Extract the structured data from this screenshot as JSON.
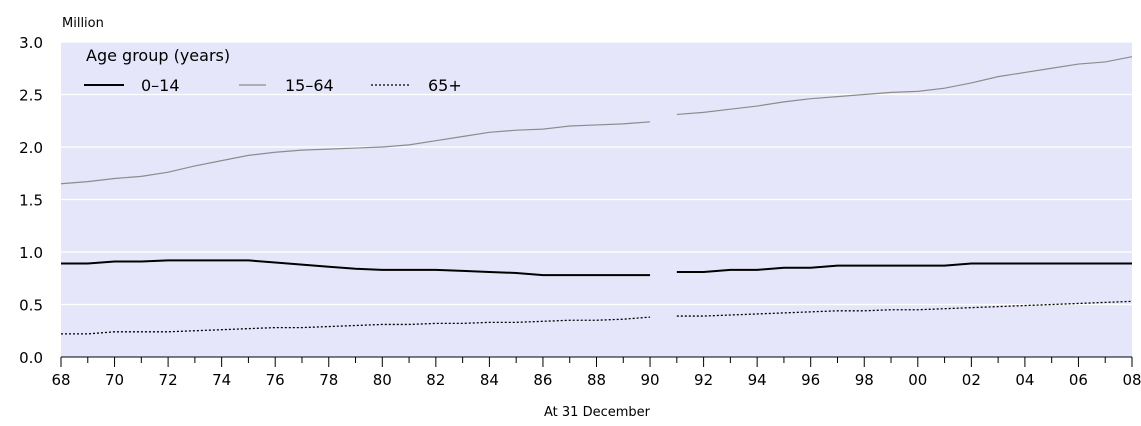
{
  "chart_data": {
    "type": "line",
    "ylabel": "Million",
    "xlabel": "At 31 December",
    "legend_title": "Age group (years)",
    "legend_position": "top-left",
    "grid": "horizontal",
    "ylim": [
      0,
      3.0
    ],
    "yticks": [
      "0.0",
      "0.5",
      "1.0",
      "1.5",
      "2.0",
      "2.5",
      "3.0"
    ],
    "xlim": [
      1968,
      2008
    ],
    "xtick_labels": [
      "68",
      "70",
      "72",
      "74",
      "76",
      "78",
      "80",
      "82",
      "84",
      "86",
      "88",
      "90",
      "92",
      "94",
      "96",
      "98",
      "00",
      "02",
      "04",
      "06",
      "08"
    ],
    "segments": [
      [
        1968,
        1990
      ],
      [
        1991,
        2008
      ]
    ],
    "x": [
      1968,
      1969,
      1970,
      1971,
      1972,
      1973,
      1974,
      1975,
      1976,
      1977,
      1978,
      1979,
      1980,
      1981,
      1982,
      1983,
      1984,
      1985,
      1986,
      1987,
      1988,
      1989,
      1990,
      1991,
      1992,
      1993,
      1994,
      1995,
      1996,
      1997,
      1998,
      1999,
      2000,
      2001,
      2002,
      2003,
      2004,
      2005,
      2006,
      2007,
      2008
    ],
    "series": [
      {
        "name": "0–14",
        "style": "solid",
        "color": "#000000",
        "values": [
          0.89,
          0.89,
          0.91,
          0.91,
          0.92,
          0.92,
          0.92,
          0.92,
          0.9,
          0.88,
          0.86,
          0.84,
          0.83,
          0.83,
          0.83,
          0.82,
          0.81,
          0.8,
          0.78,
          0.78,
          0.78,
          0.78,
          0.78,
          0.81,
          0.81,
          0.83,
          0.83,
          0.85,
          0.85,
          0.87,
          0.87,
          0.87,
          0.87,
          0.87,
          0.89,
          0.89,
          0.89,
          0.89,
          0.89,
          0.89,
          0.89
        ]
      },
      {
        "name": "15–64",
        "style": "solid",
        "color": "#8c8c8c",
        "values": [
          1.65,
          1.67,
          1.7,
          1.72,
          1.76,
          1.82,
          1.87,
          1.92,
          1.95,
          1.97,
          1.98,
          1.99,
          2.0,
          2.02,
          2.06,
          2.1,
          2.14,
          2.16,
          2.17,
          2.2,
          2.21,
          2.22,
          2.24,
          2.31,
          2.33,
          2.36,
          2.39,
          2.43,
          2.46,
          2.48,
          2.5,
          2.52,
          2.53,
          2.56,
          2.61,
          2.67,
          2.71,
          2.75,
          2.79,
          2.81,
          2.86
        ]
      },
      {
        "name": "65+",
        "style": "dotted",
        "color": "#000000",
        "values": [
          0.22,
          0.22,
          0.24,
          0.24,
          0.24,
          0.25,
          0.26,
          0.27,
          0.28,
          0.28,
          0.29,
          0.3,
          0.31,
          0.31,
          0.32,
          0.32,
          0.33,
          0.33,
          0.34,
          0.35,
          0.35,
          0.36,
          0.38,
          0.39,
          0.39,
          0.4,
          0.41,
          0.42,
          0.43,
          0.44,
          0.44,
          0.45,
          0.45,
          0.46,
          0.47,
          0.48,
          0.49,
          0.5,
          0.51,
          0.52,
          0.53
        ]
      }
    ]
  }
}
